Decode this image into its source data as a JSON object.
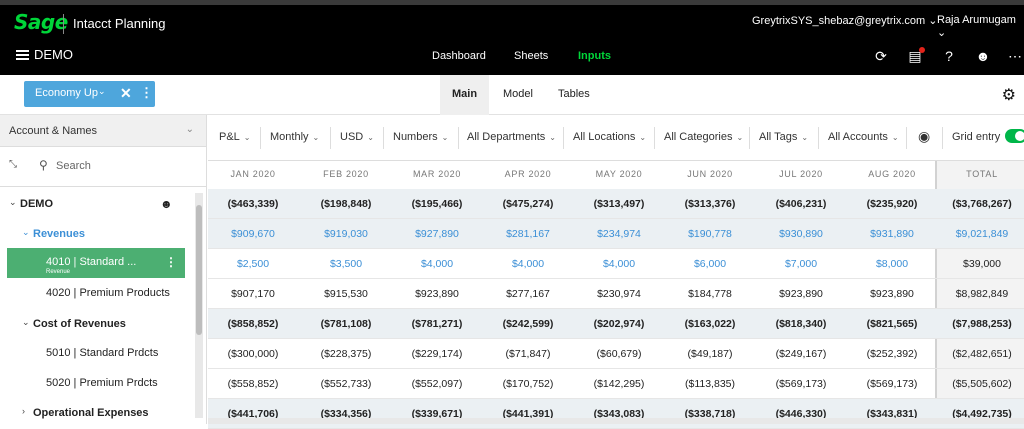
{
  "app": {
    "logo": "Sage",
    "title": "Intacct Planning",
    "user_email": "GreytrixSYS_shebaz@greytrix.com ⌄",
    "user_name": "Raja Arumugam ⌄",
    "workspace": "DEMO"
  },
  "nav": {
    "tabs": [
      {
        "label": "Dashboard"
      },
      {
        "label": "Sheets"
      },
      {
        "label": "Inputs",
        "active": true
      }
    ]
  },
  "scenario": {
    "label": "Economy Up",
    "caret": "⌄",
    "close": "✕",
    "more": "⋮"
  },
  "view_tabs": [
    {
      "label": "Main",
      "active": true
    },
    {
      "label": "Model"
    },
    {
      "label": "Tables"
    }
  ],
  "sidebar": {
    "header": "Account & Names",
    "search_placeholder": "Search",
    "tree": [
      {
        "label": "DEMO",
        "arrow": "⌄"
      },
      {
        "label": "Revenues",
        "arrow": "⌄"
      },
      {
        "label": "4010 | Standard ...",
        "sub": "Revenue",
        "selected": true
      },
      {
        "label": "4020 | Premium Products"
      },
      {
        "label": "Cost of Revenues",
        "arrow": "⌄"
      },
      {
        "label": "5010 | Standard Prdcts"
      },
      {
        "label": "5020 | Premium Prdcts"
      },
      {
        "label": "Operational Expenses",
        "arrow": "›"
      }
    ]
  },
  "filters": [
    {
      "label": "P&L"
    },
    {
      "label": "Monthly"
    },
    {
      "label": "USD"
    },
    {
      "label": "Numbers"
    },
    {
      "label": "All Departments"
    },
    {
      "label": "All Locations"
    },
    {
      "label": "All Categories"
    },
    {
      "label": "All Tags"
    },
    {
      "label": "All Accounts"
    }
  ],
  "grid_entry_label": "Grid entry",
  "grid": {
    "columns": [
      "JAN 2020",
      "FEB 2020",
      "MAR 2020",
      "APR 2020",
      "MAY 2020",
      "JUN 2020",
      "JUL 2020",
      "AUG 2020",
      "TOTAL"
    ],
    "rows": [
      {
        "style": "bold",
        "cells": [
          "($463,339)",
          "($198,848)",
          "($195,466)",
          "($475,274)",
          "($313,497)",
          "($313,376)",
          "($406,231)",
          "($235,920)",
          "($3,768,267)"
        ]
      },
      {
        "style": "blue",
        "cells": [
          "$909,670",
          "$919,030",
          "$927,890",
          "$281,167",
          "$234,974",
          "$190,778",
          "$930,890",
          "$931,890",
          "$9,021,849"
        ]
      },
      {
        "style": "blue-light",
        "cells": [
          "$2,500",
          "$3,500",
          "$4,000",
          "$4,000",
          "$4,000",
          "$6,000",
          "$7,000",
          "$8,000",
          "$39,000"
        ]
      },
      {
        "style": "plain",
        "cells": [
          "$907,170",
          "$915,530",
          "$923,890",
          "$277,167",
          "$230,974",
          "$184,778",
          "$923,890",
          "$923,890",
          "$8,982,849"
        ]
      },
      {
        "style": "bold",
        "cells": [
          "($858,852)",
          "($781,108)",
          "($781,271)",
          "($242,599)",
          "($202,974)",
          "($163,022)",
          "($818,340)",
          "($821,565)",
          "($7,988,253)"
        ]
      },
      {
        "style": "plain",
        "cells": [
          "($300,000)",
          "($228,375)",
          "($229,174)",
          "($71,847)",
          "($60,679)",
          "($49,187)",
          "($249,167)",
          "($252,392)",
          "($2,482,651)"
        ]
      },
      {
        "style": "plain",
        "cells": [
          "($558,852)",
          "($552,733)",
          "($552,097)",
          "($170,752)",
          "($142,295)",
          "($113,835)",
          "($569,173)",
          "($569,173)",
          "($5,505,602)"
        ]
      },
      {
        "style": "bold",
        "cells": [
          "($441,706)",
          "($334,356)",
          "($339,671)",
          "($441,391)",
          "($343,083)",
          "($338,718)",
          "($446,330)",
          "($343,831)",
          "($4,492,735)"
        ]
      }
    ]
  },
  "colors": {
    "brand": "#00d639",
    "accent": "#4ea6dc",
    "selected": "#4caf72",
    "blue_text": "#3b8fd6"
  }
}
